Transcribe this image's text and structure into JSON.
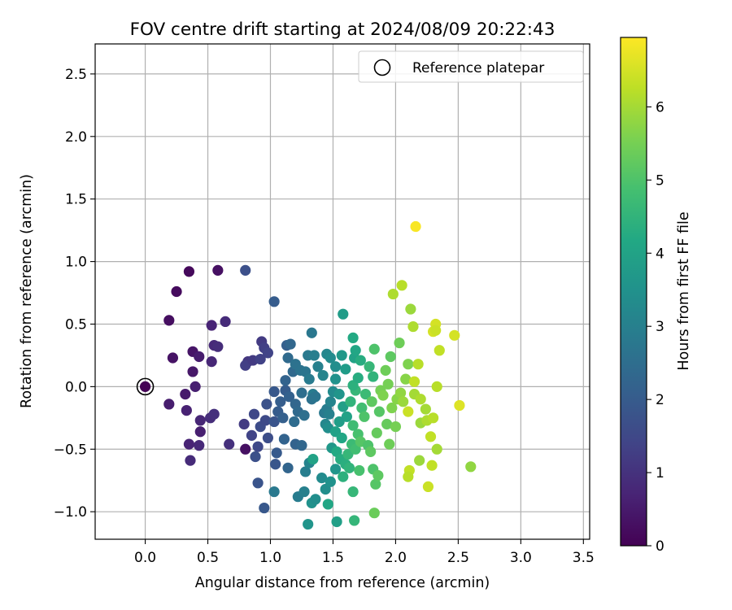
{
  "chart_data": {
    "type": "scatter",
    "title": "FOV centre drift starting at 2024/08/09 20:22:43",
    "xlabel": "Angular distance from reference (arcmin)",
    "ylabel": "Rotation from reference (arcmin)",
    "xlim": [
      -0.4,
      3.55
    ],
    "ylim": [
      -1.22,
      2.74
    ],
    "xticks": [
      "0.0",
      "0.5",
      "1.0",
      "1.5",
      "2.0",
      "2.5",
      "3.0",
      "3.5"
    ],
    "yticks": [
      "−1.0",
      "−0.5",
      "0.0",
      "0.5",
      "1.0",
      "1.5",
      "2.0",
      "2.5"
    ],
    "xtick_values": [
      0,
      0.5,
      1,
      1.5,
      2,
      2.5,
      3,
      3.5
    ],
    "ytick_values": [
      -1,
      -0.5,
      0,
      0.5,
      1,
      1.5,
      2,
      2.5
    ],
    "grid": true,
    "legend": {
      "placement": "top-right",
      "label": "Reference platepar"
    },
    "reference_point": {
      "x": 0.0,
      "y": 0.0
    },
    "colorbar": {
      "label": "Hours from first FF file",
      "colormap": "viridis",
      "range": [
        0,
        6.95
      ],
      "ticks": [
        "0",
        "1",
        "2",
        "3",
        "4",
        "5",
        "6"
      ],
      "tick_values": [
        0,
        1,
        2,
        3,
        4,
        5,
        6
      ]
    },
    "points": [
      {
        "x": 0.0,
        "y": 0.0,
        "h": 0.02
      },
      {
        "x": 0.35,
        "y": 0.92,
        "h": 0.15
      },
      {
        "x": 0.25,
        "y": 0.76,
        "h": 0.2
      },
      {
        "x": 0.58,
        "y": 0.93,
        "h": 0.3
      },
      {
        "x": 0.19,
        "y": 0.53,
        "h": 0.25
      },
      {
        "x": 0.22,
        "y": 0.23,
        "h": 0.35
      },
      {
        "x": 0.38,
        "y": 0.28,
        "h": 0.4
      },
      {
        "x": 0.43,
        "y": 0.24,
        "h": 0.55
      },
      {
        "x": 0.38,
        "y": 0.12,
        "h": 0.45
      },
      {
        "x": 0.32,
        "y": -0.06,
        "h": 0.5
      },
      {
        "x": 0.4,
        "y": 0.0,
        "h": 0.6
      },
      {
        "x": 0.19,
        "y": -0.14,
        "h": 0.55
      },
      {
        "x": 0.33,
        "y": -0.19,
        "h": 0.65
      },
      {
        "x": 0.44,
        "y": -0.27,
        "h": 0.75
      },
      {
        "x": 0.44,
        "y": -0.36,
        "h": 0.6
      },
      {
        "x": 0.35,
        "y": -0.46,
        "h": 0.7
      },
      {
        "x": 0.43,
        "y": -0.47,
        "h": 0.8
      },
      {
        "x": 0.36,
        "y": -0.59,
        "h": 0.85
      },
      {
        "x": 0.53,
        "y": 0.49,
        "h": 0.7
      },
      {
        "x": 0.64,
        "y": 0.52,
        "h": 0.85
      },
      {
        "x": 0.55,
        "y": 0.33,
        "h": 0.8
      },
      {
        "x": 0.58,
        "y": 0.32,
        "h": 0.9
      },
      {
        "x": 0.53,
        "y": 0.2,
        "h": 0.75
      },
      {
        "x": 0.52,
        "y": -0.25,
        "h": 0.9
      },
      {
        "x": 0.55,
        "y": -0.22,
        "h": 0.95
      },
      {
        "x": 0.67,
        "y": -0.46,
        "h": 0.95
      },
      {
        "x": 0.8,
        "y": -0.5,
        "h": 0.3
      },
      {
        "x": 0.8,
        "y": 0.93,
        "h": 1.7
      },
      {
        "x": 1.03,
        "y": 0.68,
        "h": 2.0
      },
      {
        "x": 0.82,
        "y": 0.2,
        "h": 1.1
      },
      {
        "x": 0.8,
        "y": 0.17,
        "h": 1.3
      },
      {
        "x": 0.86,
        "y": 0.21,
        "h": 1.2
      },
      {
        "x": 0.93,
        "y": 0.36,
        "h": 1.2
      },
      {
        "x": 0.95,
        "y": 0.31,
        "h": 1.3
      },
      {
        "x": 0.98,
        "y": 0.27,
        "h": 1.4
      },
      {
        "x": 0.92,
        "y": 0.22,
        "h": 1.35
      },
      {
        "x": 0.79,
        "y": -0.3,
        "h": 1.2
      },
      {
        "x": 0.87,
        "y": -0.22,
        "h": 1.5
      },
      {
        "x": 0.85,
        "y": -0.39,
        "h": 1.4
      },
      {
        "x": 0.92,
        "y": -0.32,
        "h": 1.6
      },
      {
        "x": 0.96,
        "y": -0.27,
        "h": 1.55
      },
      {
        "x": 0.9,
        "y": -0.48,
        "h": 1.5
      },
      {
        "x": 0.88,
        "y": -0.56,
        "h": 1.7
      },
      {
        "x": 0.9,
        "y": -0.77,
        "h": 1.8
      },
      {
        "x": 0.95,
        "y": -0.97,
        "h": 1.9
      },
      {
        "x": 0.98,
        "y": -0.41,
        "h": 1.65
      },
      {
        "x": 0.97,
        "y": -0.14,
        "h": 1.75
      },
      {
        "x": 1.03,
        "y": -0.28,
        "h": 1.8
      },
      {
        "x": 1.04,
        "y": -0.62,
        "h": 1.85
      },
      {
        "x": 1.05,
        "y": -0.53,
        "h": 1.95
      },
      {
        "x": 1.03,
        "y": -0.84,
        "h": 2.8
      },
      {
        "x": 1.03,
        "y": -0.04,
        "h": 1.9
      },
      {
        "x": 1.06,
        "y": -0.2,
        "h": 2.0
      },
      {
        "x": 1.08,
        "y": -0.12,
        "h": 2.05
      },
      {
        "x": 1.1,
        "y": -0.25,
        "h": 2.1
      },
      {
        "x": 1.11,
        "y": -0.42,
        "h": 2.2
      },
      {
        "x": 1.14,
        "y": -0.65,
        "h": 2.25
      },
      {
        "x": 1.12,
        "y": -0.03,
        "h": 2.0
      },
      {
        "x": 1.15,
        "y": -0.08,
        "h": 2.15
      },
      {
        "x": 1.12,
        "y": 0.05,
        "h": 2.2
      },
      {
        "x": 1.14,
        "y": 0.23,
        "h": 2.4
      },
      {
        "x": 1.13,
        "y": 0.33,
        "h": 2.1
      },
      {
        "x": 1.16,
        "y": 0.34,
        "h": 2.3
      },
      {
        "x": 1.18,
        "y": 0.12,
        "h": 2.35
      },
      {
        "x": 1.2,
        "y": -0.14,
        "h": 2.3
      },
      {
        "x": 1.19,
        "y": -0.28,
        "h": 2.45
      },
      {
        "x": 1.22,
        "y": -0.2,
        "h": 2.4
      },
      {
        "x": 1.25,
        "y": -0.05,
        "h": 2.5
      },
      {
        "x": 1.27,
        "y": -0.23,
        "h": 2.55
      },
      {
        "x": 1.2,
        "y": 0.18,
        "h": 2.6
      },
      {
        "x": 1.24,
        "y": 0.13,
        "h": 2.65
      },
      {
        "x": 1.28,
        "y": 0.12,
        "h": 2.7
      },
      {
        "x": 1.3,
        "y": 0.25,
        "h": 2.8
      },
      {
        "x": 1.33,
        "y": 0.43,
        "h": 2.75
      },
      {
        "x": 1.31,
        "y": 0.06,
        "h": 2.85
      },
      {
        "x": 1.34,
        "y": -0.06,
        "h": 2.9
      },
      {
        "x": 1.35,
        "y": 0.25,
        "h": 2.95
      },
      {
        "x": 1.38,
        "y": 0.16,
        "h": 3.0
      },
      {
        "x": 1.33,
        "y": -0.1,
        "h": 2.6
      },
      {
        "x": 1.36,
        "y": -0.08,
        "h": 2.7
      },
      {
        "x": 1.2,
        "y": -0.46,
        "h": 2.2
      },
      {
        "x": 1.25,
        "y": -0.47,
        "h": 2.3
      },
      {
        "x": 1.22,
        "y": -0.88,
        "h": 2.9
      },
      {
        "x": 1.27,
        "y": -0.84,
        "h": 3.0
      },
      {
        "x": 1.28,
        "y": -0.68,
        "h": 2.95
      },
      {
        "x": 1.31,
        "y": -0.61,
        "h": 3.1
      },
      {
        "x": 1.3,
        "y": -1.1,
        "h": 3.6
      },
      {
        "x": 1.33,
        "y": -0.93,
        "h": 3.5
      },
      {
        "x": 1.36,
        "y": -0.9,
        "h": 3.4
      },
      {
        "x": 1.34,
        "y": -0.58,
        "h": 4.0
      },
      {
        "x": 1.41,
        "y": -0.73,
        "h": 3.3
      },
      {
        "x": 1.44,
        "y": -0.82,
        "h": 3.4
      },
      {
        "x": 1.46,
        "y": -0.94,
        "h": 4.1
      },
      {
        "x": 1.48,
        "y": -0.76,
        "h": 3.5
      },
      {
        "x": 1.52,
        "y": -0.66,
        "h": 3.6
      },
      {
        "x": 1.53,
        "y": -1.08,
        "h": 3.9
      },
      {
        "x": 1.49,
        "y": -0.49,
        "h": 3.7
      },
      {
        "x": 1.43,
        "y": -0.21,
        "h": 2.8
      },
      {
        "x": 1.45,
        "y": -0.18,
        "h": 2.9
      },
      {
        "x": 1.47,
        "y": -0.22,
        "h": 3.0
      },
      {
        "x": 1.44,
        "y": -0.3,
        "h": 3.2
      },
      {
        "x": 1.46,
        "y": -0.33,
        "h": 3.4
      },
      {
        "x": 1.48,
        "y": -0.12,
        "h": 3.1
      },
      {
        "x": 1.5,
        "y": -0.04,
        "h": 3.3
      },
      {
        "x": 1.42,
        "y": 0.09,
        "h": 3.1
      },
      {
        "x": 1.45,
        "y": 0.26,
        "h": 3.2
      },
      {
        "x": 1.48,
        "y": 0.23,
        "h": 3.3
      },
      {
        "x": 1.52,
        "y": 0.16,
        "h": 3.4
      },
      {
        "x": 1.52,
        "y": 0.06,
        "h": 3.5
      },
      {
        "x": 1.55,
        "y": -0.06,
        "h": 3.6
      },
      {
        "x": 1.58,
        "y": 0.58,
        "h": 3.8
      },
      {
        "x": 1.57,
        "y": 0.25,
        "h": 3.7
      },
      {
        "x": 1.6,
        "y": 0.14,
        "h": 3.8
      },
      {
        "x": 1.58,
        "y": -0.16,
        "h": 3.9
      },
      {
        "x": 1.61,
        "y": -0.24,
        "h": 4.0
      },
      {
        "x": 1.55,
        "y": -0.28,
        "h": 3.85
      },
      {
        "x": 1.52,
        "y": -0.36,
        "h": 3.95
      },
      {
        "x": 1.57,
        "y": -0.41,
        "h": 4.1
      },
      {
        "x": 1.53,
        "y": -0.52,
        "h": 4.2
      },
      {
        "x": 1.56,
        "y": -0.58,
        "h": 4.3
      },
      {
        "x": 1.6,
        "y": -0.62,
        "h": 4.35
      },
      {
        "x": 1.58,
        "y": -0.72,
        "h": 4.4
      },
      {
        "x": 1.63,
        "y": -0.65,
        "h": 4.5
      },
      {
        "x": 1.66,
        "y": -0.84,
        "h": 4.6
      },
      {
        "x": 1.67,
        "y": -1.07,
        "h": 4.55
      },
      {
        "x": 1.62,
        "y": -0.54,
        "h": 4.6
      },
      {
        "x": 1.65,
        "y": -0.46,
        "h": 4.7
      },
      {
        "x": 1.68,
        "y": -0.5,
        "h": 4.8
      },
      {
        "x": 1.7,
        "y": -0.38,
        "h": 4.9
      },
      {
        "x": 1.66,
        "y": -0.31,
        "h": 4.75
      },
      {
        "x": 1.64,
        "y": -0.12,
        "h": 4.5
      },
      {
        "x": 1.68,
        "y": -0.03,
        "h": 4.6
      },
      {
        "x": 1.66,
        "y": 0.01,
        "h": 4.4
      },
      {
        "x": 1.7,
        "y": 0.07,
        "h": 4.3
      },
      {
        "x": 1.67,
        "y": 0.23,
        "h": 4.0
      },
      {
        "x": 1.68,
        "y": 0.29,
        "h": 4.1
      },
      {
        "x": 1.66,
        "y": 0.39,
        "h": 4.2
      },
      {
        "x": 1.72,
        "y": 0.21,
        "h": 4.3
      },
      {
        "x": 1.73,
        "y": -0.17,
        "h": 4.8
      },
      {
        "x": 1.75,
        "y": -0.24,
        "h": 5.0
      },
      {
        "x": 1.72,
        "y": -0.44,
        "h": 5.1
      },
      {
        "x": 1.78,
        "y": -0.47,
        "h": 5.0
      },
      {
        "x": 1.8,
        "y": -0.52,
        "h": 5.2
      },
      {
        "x": 1.71,
        "y": -0.67,
        "h": 4.9
      },
      {
        "x": 1.82,
        "y": -0.66,
        "h": 5.0
      },
      {
        "x": 1.84,
        "y": -0.78,
        "h": 5.1
      },
      {
        "x": 1.86,
        "y": -0.71,
        "h": 5.2
      },
      {
        "x": 1.83,
        "y": -1.01,
        "h": 5.35
      },
      {
        "x": 1.76,
        "y": -0.06,
        "h": 4.7
      },
      {
        "x": 1.79,
        "y": 0.16,
        "h": 4.6
      },
      {
        "x": 1.82,
        "y": 0.08,
        "h": 4.5
      },
      {
        "x": 1.83,
        "y": 0.3,
        "h": 5.0
      },
      {
        "x": 1.81,
        "y": -0.12,
        "h": 5.2
      },
      {
        "x": 1.85,
        "y": -0.37,
        "h": 5.3
      },
      {
        "x": 1.87,
        "y": -0.2,
        "h": 5.1
      },
      {
        "x": 1.88,
        "y": -0.03,
        "h": 5.5
      },
      {
        "x": 1.9,
        "y": -0.07,
        "h": 5.6
      },
      {
        "x": 1.92,
        "y": 0.13,
        "h": 5.4
      },
      {
        "x": 1.94,
        "y": 0.02,
        "h": 5.5
      },
      {
        "x": 1.93,
        "y": -0.3,
        "h": 5.3
      },
      {
        "x": 1.95,
        "y": -0.46,
        "h": 5.4
      },
      {
        "x": 1.96,
        "y": 0.24,
        "h": 5.2
      },
      {
        "x": 1.98,
        "y": 0.74,
        "h": 6.1
      },
      {
        "x": 2.03,
        "y": 0.35,
        "h": 5.4
      },
      {
        "x": 2.05,
        "y": 0.81,
        "h": 6.2
      },
      {
        "x": 1.97,
        "y": -0.17,
        "h": 5.6
      },
      {
        "x": 2.0,
        "y": -0.32,
        "h": 5.5
      },
      {
        "x": 2.01,
        "y": -0.1,
        "h": 5.7
      },
      {
        "x": 2.04,
        "y": -0.05,
        "h": 5.8
      },
      {
        "x": 2.06,
        "y": -0.12,
        "h": 5.9
      },
      {
        "x": 2.08,
        "y": 0.06,
        "h": 5.7
      },
      {
        "x": 2.1,
        "y": 0.18,
        "h": 5.6
      },
      {
        "x": 2.12,
        "y": 0.62,
        "h": 5.9
      },
      {
        "x": 2.14,
        "y": 0.48,
        "h": 6.1
      },
      {
        "x": 2.15,
        "y": 0.04,
        "h": 6.3
      },
      {
        "x": 2.18,
        "y": 0.18,
        "h": 6.2
      },
      {
        "x": 2.1,
        "y": -0.2,
        "h": 6.4
      },
      {
        "x": 2.15,
        "y": -0.06,
        "h": 6.0
      },
      {
        "x": 2.2,
        "y": -0.1,
        "h": 6.1
      },
      {
        "x": 2.24,
        "y": -0.18,
        "h": 6.0
      },
      {
        "x": 2.2,
        "y": -0.29,
        "h": 5.9
      },
      {
        "x": 2.25,
        "y": -0.27,
        "h": 6.1
      },
      {
        "x": 2.3,
        "y": -0.25,
        "h": 6.2
      },
      {
        "x": 2.28,
        "y": -0.4,
        "h": 6.3
      },
      {
        "x": 2.33,
        "y": -0.5,
        "h": 6.0
      },
      {
        "x": 2.19,
        "y": -0.59,
        "h": 5.9
      },
      {
        "x": 2.11,
        "y": -0.67,
        "h": 6.3
      },
      {
        "x": 2.1,
        "y": -0.72,
        "h": 6.2
      },
      {
        "x": 2.26,
        "y": -0.8,
        "h": 6.4
      },
      {
        "x": 2.29,
        "y": -0.63,
        "h": 6.3
      },
      {
        "x": 2.3,
        "y": 0.44,
        "h": 6.5
      },
      {
        "x": 2.32,
        "y": 0.5,
        "h": 6.5
      },
      {
        "x": 2.32,
        "y": 0.45,
        "h": 6.4
      },
      {
        "x": 2.35,
        "y": 0.29,
        "h": 6.3
      },
      {
        "x": 2.33,
        "y": 0.0,
        "h": 6.2
      },
      {
        "x": 2.47,
        "y": 0.41,
        "h": 6.5
      },
      {
        "x": 2.51,
        "y": -0.15,
        "h": 6.6
      },
      {
        "x": 2.6,
        "y": -0.64,
        "h": 5.8
      },
      {
        "x": 2.16,
        "y": 1.28,
        "h": 6.9
      }
    ]
  }
}
